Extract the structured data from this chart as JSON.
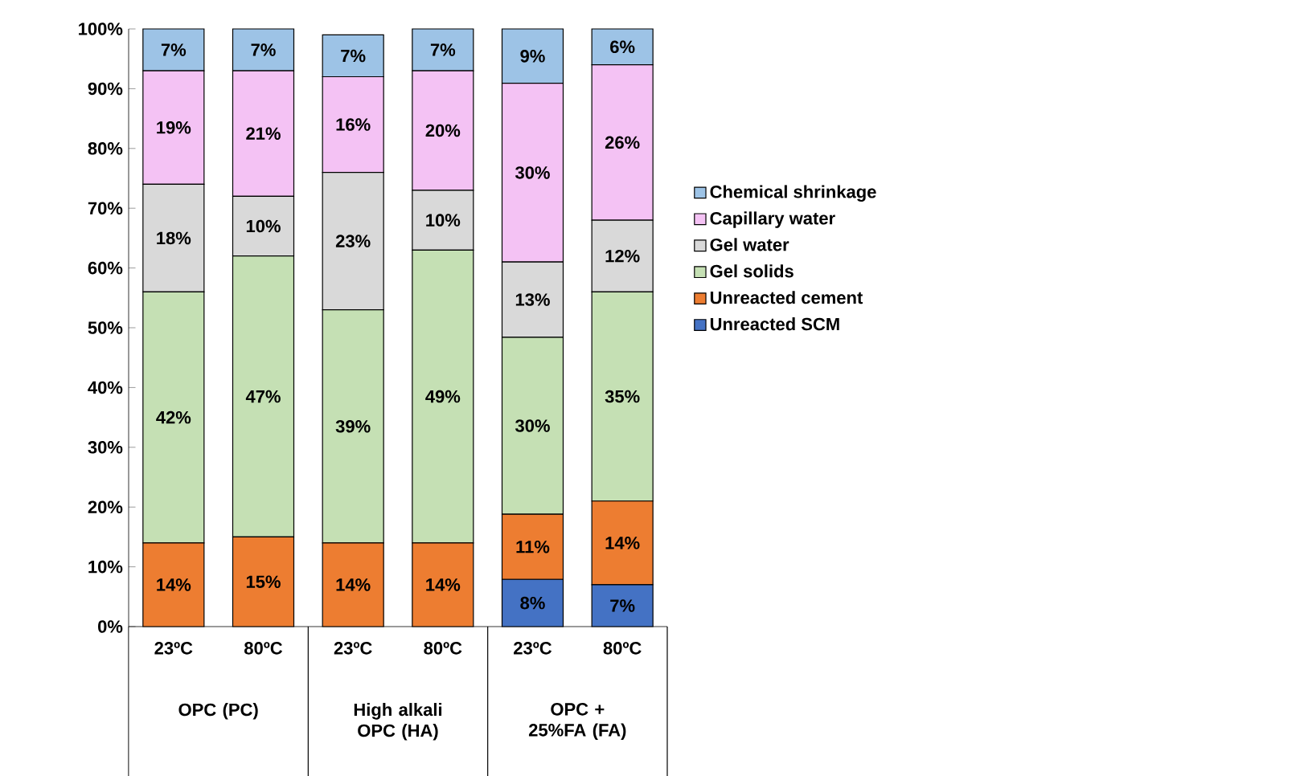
{
  "chart_data": {
    "type": "bar",
    "stacked": true,
    "categories": [
      "23ºC",
      "80ºC",
      "23ºC",
      "80ºC",
      "23ºC",
      "80ºC"
    ],
    "series": [
      {
        "name": "Unreacted SCM",
        "color": "#4472c4",
        "values": [
          0,
          0,
          0,
          0,
          7.9,
          7.0
        ],
        "value_labels": [
          null,
          null,
          null,
          null,
          "8%",
          "7%"
        ]
      },
      {
        "name": "Unreacted cement",
        "color": "#ed7d31",
        "values": [
          14,
          15,
          14,
          14,
          10.9,
          14
        ],
        "value_labels": [
          "14%",
          "15%",
          "14%",
          "14%",
          "11%",
          "14%"
        ]
      },
      {
        "name": "Gel solids",
        "color": "#c5e0b4",
        "values": [
          42,
          47,
          39,
          49,
          29.6,
          35
        ],
        "value_labels": [
          "42%",
          "47%",
          "39%",
          "49%",
          "30%",
          "35%"
        ]
      },
      {
        "name": "Gel water",
        "color": "#d9d9d9",
        "values": [
          18,
          10,
          23,
          10,
          12.6,
          12
        ],
        "value_labels": [
          "18%",
          "10%",
          "23%",
          "10%",
          "13%",
          "12%"
        ]
      },
      {
        "name": "Capillary water",
        "color": "#f4c2f4",
        "values": [
          19,
          21,
          16,
          20,
          29.9,
          26
        ],
        "value_labels": [
          "19%",
          "21%",
          "16%",
          "20%",
          "30%",
          "26%"
        ]
      },
      {
        "name": "Chemical shrinkage",
        "color": "#9dc3e6",
        "values": [
          7,
          7,
          7,
          7,
          9.1,
          6
        ],
        "value_labels": [
          "7%",
          "7%",
          "7%",
          "7%",
          "9%",
          "6%"
        ]
      }
    ],
    "annotations": [
      "OPC (PC)",
      "High alkali OPC (HA)",
      "OPC + 25%FA (FA)"
    ],
    "ylim": [
      0,
      100
    ],
    "yticks": [
      {
        "value": 0,
        "label": "0%"
      },
      {
        "value": 10,
        "label": "10%"
      },
      {
        "value": 20,
        "label": "20%"
      },
      {
        "value": 30,
        "label": "30%"
      },
      {
        "value": 40,
        "label": "40%"
      },
      {
        "value": 50,
        "label": "50%"
      },
      {
        "value": 60,
        "label": "60%"
      },
      {
        "value": 70,
        "label": "70%"
      },
      {
        "value": 80,
        "label": "80%"
      },
      {
        "value": 90,
        "label": "90%"
      },
      {
        "value": 100,
        "label": "100%"
      }
    ],
    "grid": false,
    "legend": "right"
  }
}
